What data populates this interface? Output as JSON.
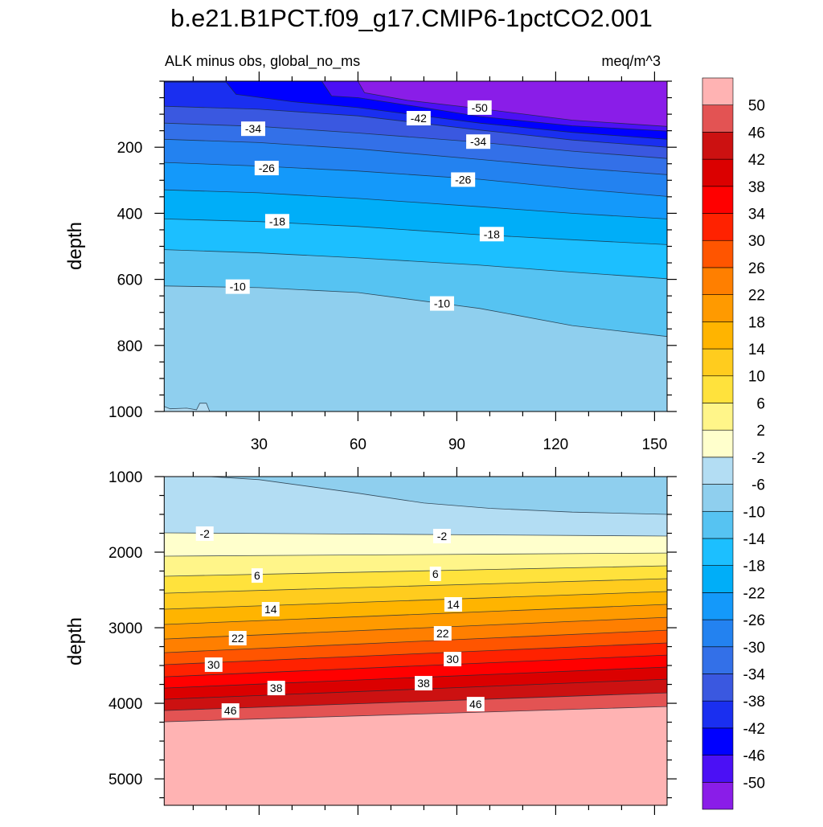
{
  "chart_data": [
    {
      "type": "contour",
      "title": "b.e21.B1PCT.f09_g17.CMIP6-1pctCO2.001",
      "subtitle_left": "ALK minus obs, global_no_ms",
      "subtitle_right": "meq/m^3",
      "ylabel": "depth",
      "xlim": [
        1.2,
        153.8
      ],
      "ylim": [
        0,
        1000
      ],
      "y_reversed": true,
      "xticks": [
        30,
        60,
        90,
        120,
        150
      ],
      "xtick_labels": [
        "30",
        "60",
        "90",
        "120",
        "150"
      ],
      "yticks": [
        200,
        400,
        600,
        800,
        1000
      ],
      "ytick_labels": [
        "200",
        "400",
        "600",
        "800",
        "1000"
      ],
      "contours": [
        {
          "level": -50,
          "points": [
            [
              1.2,
              0
            ],
            [
              60,
              0
            ],
            [
              62,
              35
            ],
            [
              75,
              58
            ],
            [
              97,
              83
            ],
            [
              125,
              118
            ],
            [
              153.8,
              137
            ]
          ]
        },
        {
          "level": -46,
          "points": [
            [
              1.2,
              0
            ],
            [
              49,
              0
            ],
            [
              52,
              45
            ],
            [
              60,
              50
            ],
            [
              80,
              80
            ],
            [
              97,
              107
            ],
            [
              125,
              135
            ],
            [
              153.8,
              151
            ]
          ]
        },
        {
          "level": -42,
          "points": [
            [
              1.2,
              3
            ],
            [
              20,
              3
            ],
            [
              23,
              40
            ],
            [
              40,
              62
            ],
            [
              60,
              80
            ],
            [
              97,
              127
            ],
            [
              125,
              155
            ],
            [
              153.8,
              176
            ]
          ]
        },
        {
          "level": -38,
          "points": [
            [
              1.2,
              76
            ],
            [
              30,
              85
            ],
            [
              60,
              105
            ],
            [
              97,
              148
            ],
            [
              125,
              178
            ],
            [
              153.8,
              200
            ]
          ]
        },
        {
          "level": -34,
          "points": [
            [
              1.2,
              127
            ],
            [
              30,
              137
            ],
            [
              60,
              157
            ],
            [
              97,
              185
            ],
            [
              125,
              212
            ],
            [
              153.8,
              234
            ]
          ]
        },
        {
          "level": -30,
          "points": [
            [
              1.2,
              176
            ],
            [
              30,
              186
            ],
            [
              60,
              205
            ],
            [
              97,
              237
            ],
            [
              125,
              262
            ],
            [
              153.8,
              283
            ]
          ]
        },
        {
          "level": -26,
          "points": [
            [
              1.2,
              246
            ],
            [
              30,
              257
            ],
            [
              60,
              272
            ],
            [
              97,
              297
            ],
            [
              125,
              325
            ],
            [
              153.8,
              349
            ]
          ]
        },
        {
          "level": -22,
          "points": [
            [
              1.2,
              329
            ],
            [
              30,
              338
            ],
            [
              60,
              355
            ],
            [
              97,
              380
            ],
            [
              125,
              400
            ],
            [
              153.8,
              417
            ]
          ]
        },
        {
          "level": -18,
          "points": [
            [
              1.2,
              417
            ],
            [
              30,
              425
            ],
            [
              60,
              440
            ],
            [
              97,
              465
            ],
            [
              125,
              480
            ],
            [
              153.8,
              495
            ]
          ]
        },
        {
          "level": -14,
          "points": [
            [
              1.2,
              510
            ],
            [
              30,
              520
            ],
            [
              60,
              535
            ],
            [
              97,
              557
            ],
            [
              125,
              578
            ],
            [
              153.8,
              598
            ]
          ]
        },
        {
          "level": -10,
          "points": [
            [
              1.2,
              620
            ],
            [
              30,
              625
            ],
            [
              60,
              640
            ],
            [
              97,
              688
            ],
            [
              125,
              740
            ],
            [
              153.8,
              773
            ]
          ]
        },
        {
          "level": -6,
          "points": [
            [
              1.2,
              985
            ],
            [
              3,
              992
            ],
            [
              8,
              990
            ],
            [
              11,
              995
            ],
            [
              12,
              975
            ],
            [
              14,
              975
            ],
            [
              15,
              1000
            ],
            [
              153.8,
              1000
            ]
          ]
        }
      ],
      "contour_labels": [
        {
          "text": "-34",
          "x": 28.2,
          "y": 144
        },
        {
          "text": "-42",
          "x": 78.4,
          "y": 112
        },
        {
          "text": "-50",
          "x": 96.9,
          "y": 80
        },
        {
          "text": "-34",
          "x": 96.5,
          "y": 183
        },
        {
          "text": "-26",
          "x": 32.3,
          "y": 263
        },
        {
          "text": "-26",
          "x": 91.9,
          "y": 298
        },
        {
          "text": "-18",
          "x": 35.5,
          "y": 424
        },
        {
          "text": "-18",
          "x": 100.6,
          "y": 463
        },
        {
          "text": "-10",
          "x": 23.5,
          "y": 622
        },
        {
          "text": "-10",
          "x": 85.5,
          "y": 673
        }
      ]
    },
    {
      "type": "contour",
      "ylabel": "depth",
      "xlim": [
        1.2,
        153.8
      ],
      "ylim": [
        1000,
        5350
      ],
      "y_reversed": true,
      "xticks": [
        30,
        60,
        90,
        120,
        150
      ],
      "yticks": [
        1000,
        2000,
        3000,
        4000,
        5000
      ],
      "ytick_labels": [
        "1000",
        "2000",
        "3000",
        "4000",
        "5000"
      ],
      "contours": [
        {
          "level": -6,
          "points": [
            [
              1.2,
              1000
            ],
            [
              15,
              1000
            ],
            [
              30,
              1040
            ],
            [
              45,
              1130
            ],
            [
              60,
              1220
            ],
            [
              80,
              1350
            ],
            [
              100,
              1420
            ],
            [
              125,
              1470
            ],
            [
              153.8,
              1500
            ]
          ]
        },
        {
          "level": -2,
          "points": [
            [
              1.2,
              1745
            ],
            [
              153.8,
              1787
            ]
          ]
        },
        {
          "level": 2,
          "points": [
            [
              1.2,
              2053
            ],
            [
              153.8,
              2011
            ]
          ]
        },
        {
          "level": 6,
          "points": [
            [
              1.2,
              2319
            ],
            [
              153.8,
              2181
            ]
          ]
        },
        {
          "level": 10,
          "points": [
            [
              1.2,
              2543
            ],
            [
              153.8,
              2351
            ]
          ]
        },
        {
          "level": 14,
          "points": [
            [
              1.2,
              2755
            ],
            [
              153.8,
              2521
            ]
          ]
        },
        {
          "level": 18,
          "points": [
            [
              1.2,
              2957
            ],
            [
              153.8,
              2691
            ]
          ]
        },
        {
          "level": 22,
          "points": [
            [
              1.2,
              3149
            ],
            [
              153.8,
              2862
            ]
          ]
        },
        {
          "level": 26,
          "points": [
            [
              1.2,
              3330
            ],
            [
              153.8,
              3032
            ]
          ]
        },
        {
          "level": 30,
          "points": [
            [
              1.2,
              3489
            ],
            [
              153.8,
              3202
            ]
          ]
        },
        {
          "level": 34,
          "points": [
            [
              1.2,
              3649
            ],
            [
              153.8,
              3362
            ]
          ]
        },
        {
          "level": 38,
          "points": [
            [
              1.2,
              3798
            ],
            [
              153.8,
              3521
            ]
          ]
        },
        {
          "level": 42,
          "points": [
            [
              1.2,
              3947
            ],
            [
              153.8,
              3681
            ]
          ]
        },
        {
          "level": 46,
          "points": [
            [
              1.2,
              4096
            ],
            [
              153.8,
              3862
            ]
          ]
        },
        {
          "level": 50,
          "points": [
            [
              1.2,
              4245
            ],
            [
              153.8,
              4043
            ]
          ]
        }
      ],
      "contour_labels": [
        {
          "text": "-2",
          "x": 13.5,
          "y": 1755
        },
        {
          "text": "-2",
          "x": 85.5,
          "y": 1787
        },
        {
          "text": "6",
          "x": 29.4,
          "y": 2309
        },
        {
          "text": "6",
          "x": 83.5,
          "y": 2287
        },
        {
          "text": "14",
          "x": 33.5,
          "y": 2755
        },
        {
          "text": "14",
          "x": 88.9,
          "y": 2691
        },
        {
          "text": "22",
          "x": 23.5,
          "y": 3138
        },
        {
          "text": "22",
          "x": 85.7,
          "y": 3074
        },
        {
          "text": "30",
          "x": 16.2,
          "y": 3489
        },
        {
          "text": "30",
          "x": 88.7,
          "y": 3415
        },
        {
          "text": "38",
          "x": 35.2,
          "y": 3798
        },
        {
          "text": "38",
          "x": 79.9,
          "y": 3734
        },
        {
          "text": "46",
          "x": 21.3,
          "y": 4096
        },
        {
          "text": "46",
          "x": 95.7,
          "y": 4011
        }
      ]
    }
  ],
  "colorbar": {
    "levels": [
      -50,
      -46,
      -42,
      -38,
      -34,
      -30,
      -26,
      -22,
      -18,
      -14,
      -10,
      -6,
      -2,
      2,
      6,
      10,
      14,
      18,
      22,
      26,
      30,
      34,
      38,
      42,
      46,
      50
    ],
    "labels": [
      "-50",
      "-46",
      "-42",
      "-38",
      "-34",
      "-30",
      "-26",
      "-22",
      "-18",
      "-14",
      "-10",
      "-6",
      "-2",
      "2",
      "6",
      "10",
      "14",
      "18",
      "22",
      "26",
      "30",
      "34",
      "38",
      "42",
      "46",
      "50"
    ],
    "colors": [
      "#8a1de8",
      "#4b10f5",
      "#0000ff",
      "#1a2ff0",
      "#3a58e0",
      "#3370e8",
      "#2382f0",
      "#1499fa",
      "#00aef8",
      "#1cbfff",
      "#56c3f2",
      "#8fcfee",
      "#b3ddf3",
      "#ffffcc",
      "#fff589",
      "#ffe23c",
      "#ffcc1e",
      "#ffb400",
      "#ff9a00",
      "#ff7f00",
      "#ff5500",
      "#ff2200",
      "#ff0000",
      "#db0000",
      "#cc1111",
      "#e35353",
      "#ffb3b3"
    ],
    "placement": "right"
  }
}
